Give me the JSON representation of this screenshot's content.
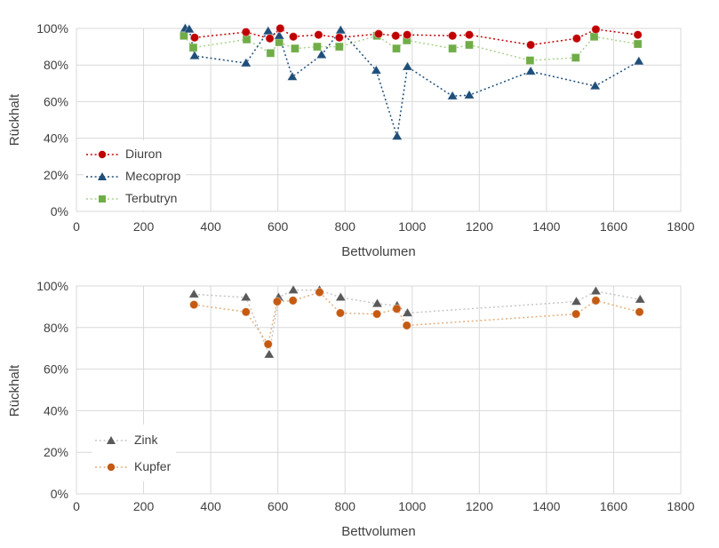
{
  "figure": {
    "background": "#ffffff",
    "text_color": "#404040",
    "grid_color": "#d9d9d9"
  },
  "chart_data": [
    {
      "type": "scatter",
      "title": "",
      "xlabel": "Bettvolumen",
      "ylabel": "Rückhalt",
      "xlim": [
        0,
        1800
      ],
      "ylim": [
        0,
        100
      ],
      "x_ticks": [
        0,
        200,
        400,
        600,
        800,
        1000,
        1200,
        1400,
        1600,
        1800
      ],
      "x_tick_labels": [
        "0",
        "200",
        "400",
        "600",
        "800",
        "1000",
        "1200",
        "1400",
        "1600",
        "1800"
      ],
      "y_ticks": [
        0,
        20,
        40,
        60,
        80,
        100
      ],
      "y_tick_labels": [
        "0%",
        "20%",
        "40%",
        "60%",
        "80%",
        "100%"
      ],
      "grid": true,
      "legend_position": "inside-bottom-left",
      "series": [
        {
          "name": "Diuron",
          "marker": "circle",
          "color": "#c00000",
          "line_color": "#c00000",
          "points": [
            [
              352,
              95
            ],
            [
              505,
              98
            ],
            [
              576,
              94.5
            ],
            [
              607,
              100
            ],
            [
              646,
              95.5
            ],
            [
              721,
              96.5
            ],
            [
              783,
              95
            ],
            [
              900,
              97
            ],
            [
              951,
              96
            ],
            [
              985,
              96.5
            ],
            [
              1120,
              96
            ],
            [
              1170,
              96.5
            ],
            [
              1353,
              91
            ],
            [
              1490,
              94.5
            ],
            [
              1547,
              99.5
            ],
            [
              1672,
              96.5
            ]
          ]
        },
        {
          "name": "Mecoprop",
          "marker": "triangle",
          "color": "#1f4e79",
          "line_color": "#1f4e79",
          "points": [
            [
              324,
              100
            ],
            [
              336,
              99.5
            ],
            [
              352,
              85
            ],
            [
              505,
              81
            ],
            [
              571,
              98.5
            ],
            [
              604,
              96
            ],
            [
              643,
              73.5
            ],
            [
              730,
              85.5
            ],
            [
              787,
              99
            ],
            [
              893,
              77
            ],
            [
              955,
              41
            ],
            [
              986,
              79
            ],
            [
              1120,
              63
            ],
            [
              1170,
              63.5
            ],
            [
              1353,
              76.5
            ],
            [
              1545,
              68.5
            ],
            [
              1675,
              82
            ]
          ]
        },
        {
          "name": "Terbutryn",
          "marker": "square",
          "color": "#70ad47",
          "line_color": "#a9d18e",
          "points": [
            [
              320,
              96
            ],
            [
              348,
              89.5
            ],
            [
              507,
              94
            ],
            [
              578,
              86.5
            ],
            [
              604,
              92.5
            ],
            [
              651,
              89
            ],
            [
              717,
              90
            ],
            [
              783,
              90
            ],
            [
              895,
              96
            ],
            [
              953,
              89
            ],
            [
              984,
              93.5
            ],
            [
              1120,
              89
            ],
            [
              1170,
              91
            ],
            [
              1351,
              82.5
            ],
            [
              1487,
              84
            ],
            [
              1542,
              95.5
            ],
            [
              1672,
              91.5
            ]
          ]
        }
      ]
    },
    {
      "type": "scatter",
      "title": "",
      "xlabel": "Bettvolumen",
      "ylabel": "Rückhalt",
      "xlim": [
        0,
        1800
      ],
      "ylim": [
        0,
        100
      ],
      "x_ticks": [
        0,
        200,
        400,
        600,
        800,
        1000,
        1200,
        1400,
        1600,
        1800
      ],
      "x_tick_labels": [
        "0",
        "200",
        "400",
        "600",
        "800",
        "1000",
        "1200",
        "1400",
        "1600",
        "1800"
      ],
      "y_ticks": [
        0,
        20,
        40,
        60,
        80,
        100
      ],
      "y_tick_labels": [
        "0%",
        "20%",
        "40%",
        "60%",
        "80%",
        "100%"
      ],
      "grid": true,
      "legend_position": "inside-bottom-left",
      "series": [
        {
          "name": "Zink",
          "marker": "triangle",
          "color": "#595959",
          "line_color": "#c6c6c6",
          "points": [
            [
              350,
              96
            ],
            [
              505,
              94.5
            ],
            [
              574,
              67
            ],
            [
              602,
              94.5
            ],
            [
              646,
              98
            ],
            [
              724,
              98
            ],
            [
              787,
              94.5
            ],
            [
              896,
              91.5
            ],
            [
              955,
              90.5
            ],
            [
              986,
              87
            ],
            [
              1489,
              92.5
            ],
            [
              1547,
              97.5
            ],
            [
              1679,
              93.5
            ]
          ]
        },
        {
          "name": "Kupfer",
          "marker": "circle",
          "color": "#c55a11",
          "line_color": "#e1b07e",
          "points": [
            [
              350,
              91
            ],
            [
              505,
              87.5
            ],
            [
              571,
              72
            ],
            [
              598,
              92.5
            ],
            [
              645,
              93
            ],
            [
              724,
              97
            ],
            [
              786,
              87
            ],
            [
              895,
              86.5
            ],
            [
              954,
              89
            ],
            [
              984,
              81
            ],
            [
              1488,
              86.5
            ],
            [
              1547,
              93
            ],
            [
              1677,
              87.5
            ]
          ]
        }
      ]
    }
  ]
}
